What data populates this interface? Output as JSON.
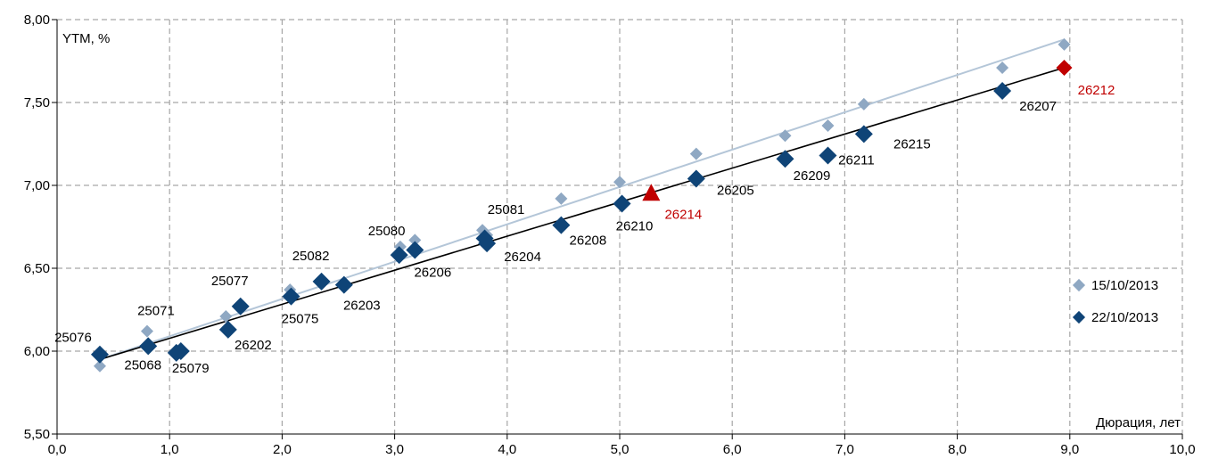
{
  "chart_data": {
    "type": "scatter",
    "xlabel": "Дюрация, лет",
    "ylabel": "YTM, %",
    "xlim": [
      0,
      10
    ],
    "ylim": [
      5.5,
      8.0
    ],
    "x_ticks": [
      "0,0",
      "1,0",
      "2,0",
      "3,0",
      "4,0",
      "5,0",
      "6,0",
      "7,0",
      "8,0",
      "9,0",
      "10,0"
    ],
    "y_ticks": [
      "8,00",
      "7,50",
      "7,00",
      "6,50",
      "6,00",
      "5,50"
    ],
    "grid": true,
    "legend_position": "right",
    "colors": {
      "series_old": "#8fa8c3",
      "series_new": "#0f4477",
      "trend_old": "#b4c6d8",
      "trend_new": "#000000",
      "highlight": "#c00000",
      "grid": "#a6a6a6"
    },
    "series": [
      {
        "name": "15/10/2013",
        "points": [
          {
            "x": 0.38,
            "y": 5.91
          },
          {
            "x": 0.8,
            "y": 6.12
          },
          {
            "x": 1.07,
            "y": 5.99
          },
          {
            "x": 1.5,
            "y": 6.21
          },
          {
            "x": 1.62,
            "y": 6.26
          },
          {
            "x": 2.07,
            "y": 6.37
          },
          {
            "x": 2.35,
            "y": 6.42
          },
          {
            "x": 2.55,
            "y": 6.41
          },
          {
            "x": 3.05,
            "y": 6.63
          },
          {
            "x": 3.18,
            "y": 6.67
          },
          {
            "x": 3.78,
            "y": 6.73
          },
          {
            "x": 3.82,
            "y": 6.7
          },
          {
            "x": 4.48,
            "y": 6.92
          },
          {
            "x": 5.0,
            "y": 7.02
          },
          {
            "x": 5.68,
            "y": 7.19
          },
          {
            "x": 6.47,
            "y": 7.3
          },
          {
            "x": 6.85,
            "y": 7.36
          },
          {
            "x": 7.17,
            "y": 7.49
          },
          {
            "x": 8.4,
            "y": 7.71
          },
          {
            "x": 8.95,
            "y": 7.85
          }
        ],
        "trend": [
          [
            0.38,
            5.95
          ],
          [
            8.95,
            7.88
          ]
        ]
      },
      {
        "name": "22/10/2013",
        "points": [
          {
            "x": 0.38,
            "y": 5.98,
            "label": "25076",
            "dx": -30,
            "dy": -14
          },
          {
            "x": 0.81,
            "y": 6.03,
            "label": "25068",
            "dx": -6,
            "dy": 26
          },
          {
            "x": 1.06,
            "y": 5.99,
            "label": "25079",
            "dx": 16,
            "dy": 22
          },
          {
            "x": 1.1,
            "y": 6.0,
            "label": "",
            "dx": 0,
            "dy": 0
          },
          {
            "x": 1.52,
            "y": 6.13,
            "label": "26202",
            "dx": 28,
            "dy": 22
          },
          {
            "x": 1.63,
            "y": 6.27,
            "label": "25077",
            "dx": -12,
            "dy": -24
          },
          {
            "x": 2.08,
            "y": 6.33,
            "label": "25075",
            "dx": 10,
            "dy": 30
          },
          {
            "x": 2.35,
            "y": 6.42,
            "label": "25082",
            "dx": -12,
            "dy": -24
          },
          {
            "x": 2.55,
            "y": 6.4,
            "label": "26203",
            "dx": 20,
            "dy": 28
          },
          {
            "x": 3.04,
            "y": 6.58,
            "label": "25080",
            "dx": -14,
            "dy": -22
          },
          {
            "x": 3.18,
            "y": 6.61,
            "label": "26206",
            "dx": 20,
            "dy": 30
          },
          {
            "x": 3.8,
            "y": 6.68,
            "label": "",
            "dx": 0,
            "dy": 0
          },
          {
            "x": 3.82,
            "y": 6.65,
            "label": "26204",
            "dx": 40,
            "dy": 20
          },
          {
            "x": 4.48,
            "y": 6.76,
            "label": "26208",
            "dx": 30,
            "dy": 22
          },
          {
            "x": 5.02,
            "y": 6.89,
            "label": "26210",
            "dx": 14,
            "dy": 30
          },
          {
            "x": 5.68,
            "y": 7.04,
            "label": "26205",
            "dx": 44,
            "dy": 18
          },
          {
            "x": 6.47,
            "y": 7.16,
            "label": "26209",
            "dx": 30,
            "dy": 24
          },
          {
            "x": 6.85,
            "y": 7.18,
            "label": "26211",
            "dx": 32,
            "dy": 10
          },
          {
            "x": 7.17,
            "y": 7.31,
            "label": "26215",
            "dx": 54,
            "dy": 16
          },
          {
            "x": 8.4,
            "y": 7.57,
            "label": "26207",
            "dx": 40,
            "dy": 22
          }
        ],
        "trend": [
          [
            0.38,
            5.95
          ],
          [
            8.95,
            7.71
          ]
        ]
      }
    ],
    "highlights": [
      {
        "x": 5.28,
        "y": 6.95,
        "shape": "triangle",
        "label": "26214",
        "dx": 36,
        "dy": 28
      },
      {
        "x": 8.95,
        "y": 7.71,
        "shape": "diamond",
        "label": "26212",
        "dx": 36,
        "dy": 30
      }
    ],
    "annotations": [
      {
        "text": "25071",
        "x": 0.8,
        "y": 6.12,
        "dx": 10,
        "dy": -18
      },
      {
        "text": "25081",
        "x": 3.8,
        "y": 6.73,
        "dx": 24,
        "dy": -18
      }
    ]
  }
}
